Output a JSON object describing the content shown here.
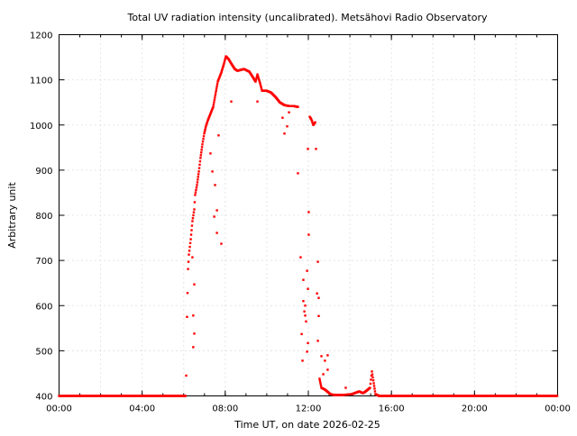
{
  "chart_data": {
    "type": "scatter",
    "title": "Total UV radiation intensity (uncalibrated). Metsähovi Radio Observatory",
    "xlabel": "Time UT, on date 2026-02-25",
    "ylabel": "Arbitrary unit",
    "xlim": [
      0,
      24
    ],
    "ylim": [
      400,
      1200
    ],
    "grid": true,
    "x_ticks": [
      {
        "value": 0,
        "label": "00:00"
      },
      {
        "value": 4,
        "label": "04:00"
      },
      {
        "value": 8,
        "label": "08:00"
      },
      {
        "value": 12,
        "label": "12:00"
      },
      {
        "value": 16,
        "label": "16:00"
      },
      {
        "value": 20,
        "label": "20:00"
      },
      {
        "value": 24,
        "label": "00:00"
      }
    ],
    "y_ticks": [
      {
        "value": 400,
        "label": "400"
      },
      {
        "value": 500,
        "label": "500"
      },
      {
        "value": 600,
        "label": "600"
      },
      {
        "value": 700,
        "label": "700"
      },
      {
        "value": 800,
        "label": "800"
      },
      {
        "value": 900,
        "label": "900"
      },
      {
        "value": 1000,
        "label": "1000"
      },
      {
        "value": 1100,
        "label": "1100"
      },
      {
        "value": 1200,
        "label": "1200"
      }
    ],
    "series_color": "#ff0000",
    "baseline_segments": [
      [
        0,
        6.1,
        400
      ],
      [
        15.4,
        24,
        400
      ]
    ],
    "main_curve": [
      [
        6.16,
        575
      ],
      [
        6.21,
        681
      ],
      [
        6.25,
        713
      ],
      [
        6.34,
        747
      ],
      [
        6.42,
        787
      ],
      [
        6.51,
        813
      ],
      [
        6.55,
        845
      ],
      [
        6.64,
        867
      ],
      [
        6.73,
        897
      ],
      [
        6.81,
        927
      ],
      [
        6.9,
        957
      ],
      [
        6.99,
        981
      ],
      [
        7.07,
        997
      ],
      [
        7.16,
        1010
      ],
      [
        7.42,
        1040
      ],
      [
        7.64,
        1096
      ],
      [
        7.81,
        1116
      ],
      [
        7.94,
        1136
      ],
      [
        8.03,
        1152
      ],
      [
        8.16,
        1146
      ],
      [
        8.29,
        1136
      ],
      [
        8.46,
        1124
      ],
      [
        8.59,
        1120
      ],
      [
        8.9,
        1124
      ],
      [
        9.16,
        1118
      ],
      [
        9.33,
        1106
      ],
      [
        9.46,
        1096
      ],
      [
        9.55,
        1112
      ],
      [
        9.68,
        1092
      ],
      [
        9.77,
        1076
      ],
      [
        9.98,
        1076
      ],
      [
        10.2,
        1072
      ],
      [
        10.42,
        1062
      ],
      [
        10.63,
        1050
      ],
      [
        10.85,
        1044
      ],
      [
        11.07,
        1042
      ],
      [
        11.28,
        1042
      ],
      [
        11.5,
        1040
      ]
    ],
    "afternoon_curve": [
      [
        12.07,
        1018
      ],
      [
        12.15,
        1012
      ],
      [
        12.24,
        1000
      ],
      [
        12.33,
        1006
      ]
    ],
    "evening_curve": [
      [
        12.54,
        438
      ],
      [
        12.63,
        418
      ],
      [
        12.8,
        414
      ],
      [
        13.06,
        404
      ],
      [
        13.24,
        402
      ],
      [
        13.67,
        402
      ],
      [
        14.11,
        404
      ],
      [
        14.45,
        410
      ],
      [
        14.63,
        406
      ],
      [
        14.76,
        410
      ],
      [
        14.97,
        418
      ],
      [
        15.06,
        454
      ],
      [
        15.15,
        428
      ],
      [
        15.23,
        404
      ],
      [
        15.41,
        400
      ]
    ],
    "scatter_points": [
      [
        6.12,
        445
      ],
      [
        6.42,
        707
      ],
      [
        6.51,
        647
      ],
      [
        6.46,
        578
      ],
      [
        6.51,
        538
      ],
      [
        6.46,
        508
      ],
      [
        7.29,
        937
      ],
      [
        7.38,
        897
      ],
      [
        7.47,
        797
      ],
      [
        7.51,
        867
      ],
      [
        7.6,
        811
      ],
      [
        7.68,
        977
      ],
      [
        7.81,
        737
      ],
      [
        8.29,
        1052
      ],
      [
        7.6,
        761
      ],
      [
        9.55,
        1052
      ],
      [
        10.76,
        1016
      ],
      [
        10.85,
        981
      ],
      [
        10.98,
        997
      ],
      [
        11.07,
        1028
      ],
      [
        11.5,
        893
      ],
      [
        11.63,
        707
      ],
      [
        11.76,
        657
      ],
      [
        11.85,
        578
      ],
      [
        11.94,
        498
      ],
      [
        11.98,
        637
      ],
      [
        12.02,
        807
      ],
      [
        12.37,
        947
      ],
      [
        12.46,
        697
      ],
      [
        12.46,
        522
      ],
      [
        11.68,
        537
      ],
      [
        11.81,
        587
      ],
      [
        11.89,
        565
      ],
      [
        11.94,
        677
      ],
      [
        11.72,
        478
      ],
      [
        11.98,
        517
      ],
      [
        12.5,
        617
      ],
      [
        12.63,
        488
      ],
      [
        12.8,
        478
      ],
      [
        12.93,
        458
      ],
      [
        12.72,
        448
      ],
      [
        13.8,
        418
      ],
      [
        12.02,
        757
      ],
      [
        11.98,
        947
      ],
      [
        12.42,
        627
      ],
      [
        12.5,
        577
      ],
      [
        12.93,
        490
      ],
      [
        11.85,
        600
      ],
      [
        11.76,
        610
      ]
    ]
  }
}
